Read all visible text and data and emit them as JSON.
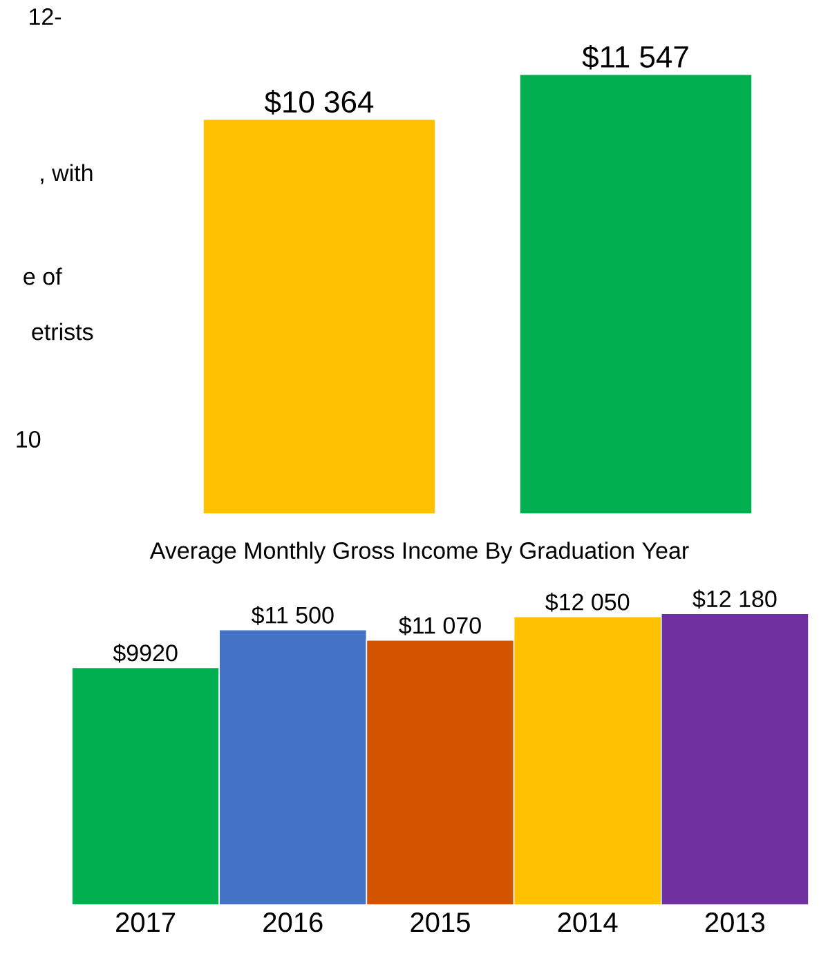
{
  "chart_data": [
    {
      "type": "bar",
      "categories": [
        null,
        null
      ],
      "values": [
        10364,
        11547
      ],
      "colors": [
        "#ffc000",
        "#00b050"
      ],
      "value_labels": [
        "$10 364",
        "$11 547"
      ],
      "annotations": [
        "12-",
        ", with",
        "e of",
        "etrists",
        "10"
      ]
    },
    {
      "type": "bar",
      "title": "Average Monthly Gross Income By Graduation Year",
      "categories": [
        "2017",
        "2016",
        "2015",
        "2014",
        "2013"
      ],
      "values": [
        9920,
        11500,
        11070,
        12050,
        12180
      ],
      "colors": [
        "#00b050",
        "#4472c4",
        "#d35400",
        "#ffc000",
        "#7030a0"
      ],
      "value_labels": [
        "$9920",
        "$11 500",
        "$11 070",
        "$12 050",
        "$12 180"
      ]
    }
  ]
}
